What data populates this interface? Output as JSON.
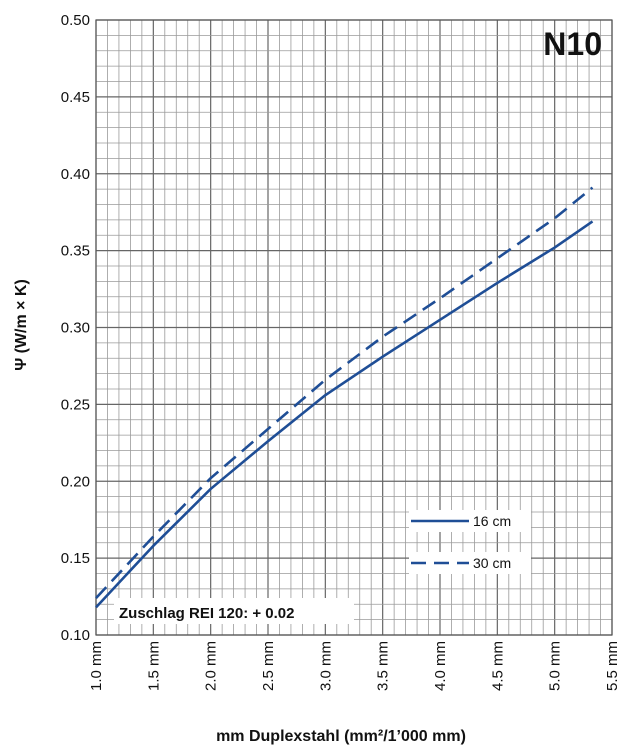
{
  "chart_data": {
    "type": "line",
    "badge": "N10",
    "xlabel": "mm Duplexstahl (mm²/1’000 mm)",
    "ylabel": "Ψ (W/m × K)",
    "xlim": [
      1.0,
      5.5
    ],
    "ylim": [
      0.1,
      0.5
    ],
    "x_ticks": [
      1.0,
      1.5,
      2.0,
      2.5,
      3.0,
      3.5,
      4.0,
      4.5,
      5.0,
      5.5
    ],
    "x_tick_labels": [
      "1.0 mm",
      "1.5 mm",
      "2.0 mm",
      "2.5 mm",
      "3.0 mm",
      "3.5 mm",
      "4.0 mm",
      "4.5 mm",
      "5.0 mm",
      "5.5 mm"
    ],
    "y_ticks": [
      0.1,
      0.15,
      0.2,
      0.25,
      0.3,
      0.35,
      0.4,
      0.45,
      0.5
    ],
    "y_tick_labels": [
      "0.10",
      "0.15",
      "0.20",
      "0.25",
      "0.30",
      "0.35",
      "0.40",
      "0.45",
      "0.50"
    ],
    "grid": true,
    "annotation": "Zuschlag REI 120: + 0.02",
    "legend_position": "lower-right",
    "series": [
      {
        "name": "16 cm",
        "style": "solid",
        "color": "#1f4e96",
        "x": [
          1.0,
          1.5,
          2.0,
          2.5,
          3.0,
          3.5,
          4.0,
          4.5,
          5.0,
          5.33
        ],
        "y": [
          0.118,
          0.158,
          0.195,
          0.226,
          0.256,
          0.281,
          0.305,
          0.329,
          0.352,
          0.369
        ]
      },
      {
        "name": "30 cm",
        "style": "dashed",
        "color": "#1f4e96",
        "x": [
          1.0,
          1.5,
          2.0,
          2.5,
          3.0,
          3.5,
          4.0,
          4.5,
          5.0,
          5.33
        ],
        "y": [
          0.124,
          0.164,
          0.202,
          0.234,
          0.266,
          0.294,
          0.319,
          0.345,
          0.371,
          0.391
        ]
      }
    ]
  }
}
